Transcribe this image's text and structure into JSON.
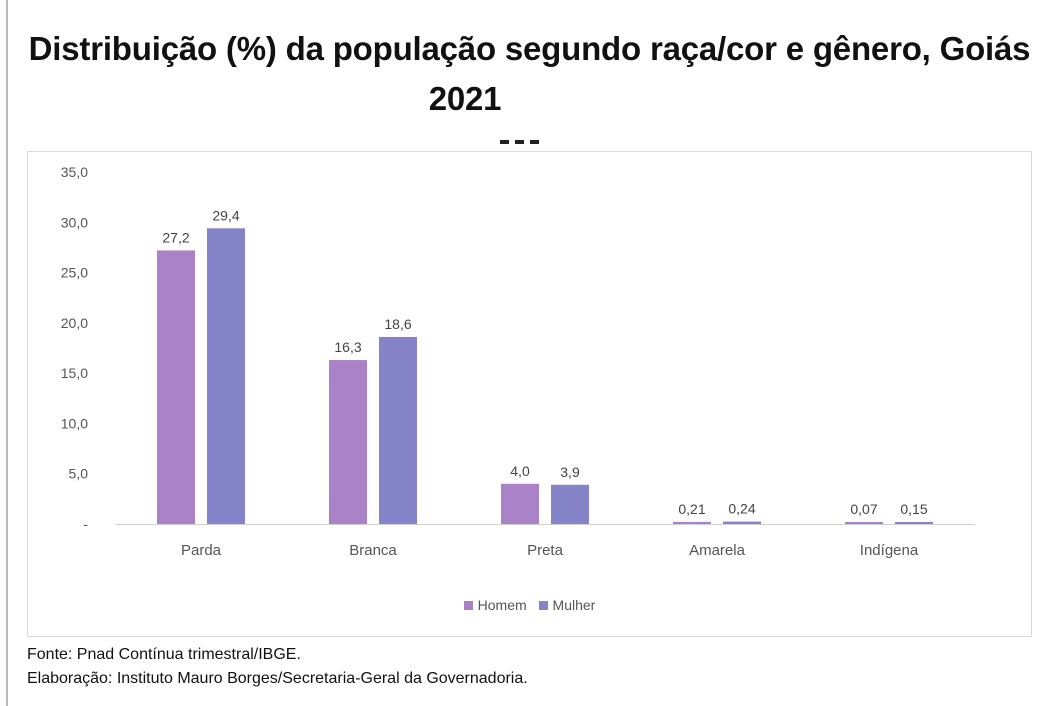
{
  "chart_data": {
    "type": "bar",
    "title_line1": "Distribuição (%) da população segundo raça/cor e gênero, Goiás",
    "title_line2": "2021",
    "categories": [
      "Parda",
      "Branca",
      "Preta",
      "Amarela",
      "Indígena"
    ],
    "series": [
      {
        "name": "Homem",
        "values": [
          27.2,
          16.3,
          4.0,
          0.21,
          0.07
        ],
        "labels": [
          "27,2",
          "16,3",
          "4,0",
          "0,21",
          "0,07"
        ],
        "color": "#a982c8"
      },
      {
        "name": "Mulher",
        "values": [
          29.4,
          18.6,
          3.9,
          0.24,
          0.15
        ],
        "labels": [
          "29,4",
          "18,6",
          "3,9",
          "0,24",
          "0,15"
        ],
        "color": "#8684c8"
      }
    ],
    "y_ticks": [
      "-",
      "5,0",
      "10,0",
      "15,0",
      "20,0",
      "25,0",
      "30,0",
      "35,0"
    ],
    "ylim": [
      0,
      35
    ],
    "legend_position": "bottom"
  },
  "source": "Fonte: Pnad Contínua trimestral/IBGE.",
  "credit": "Elaboração: Instituto Mauro Borges/Secretaria-Geral da Governadoria."
}
